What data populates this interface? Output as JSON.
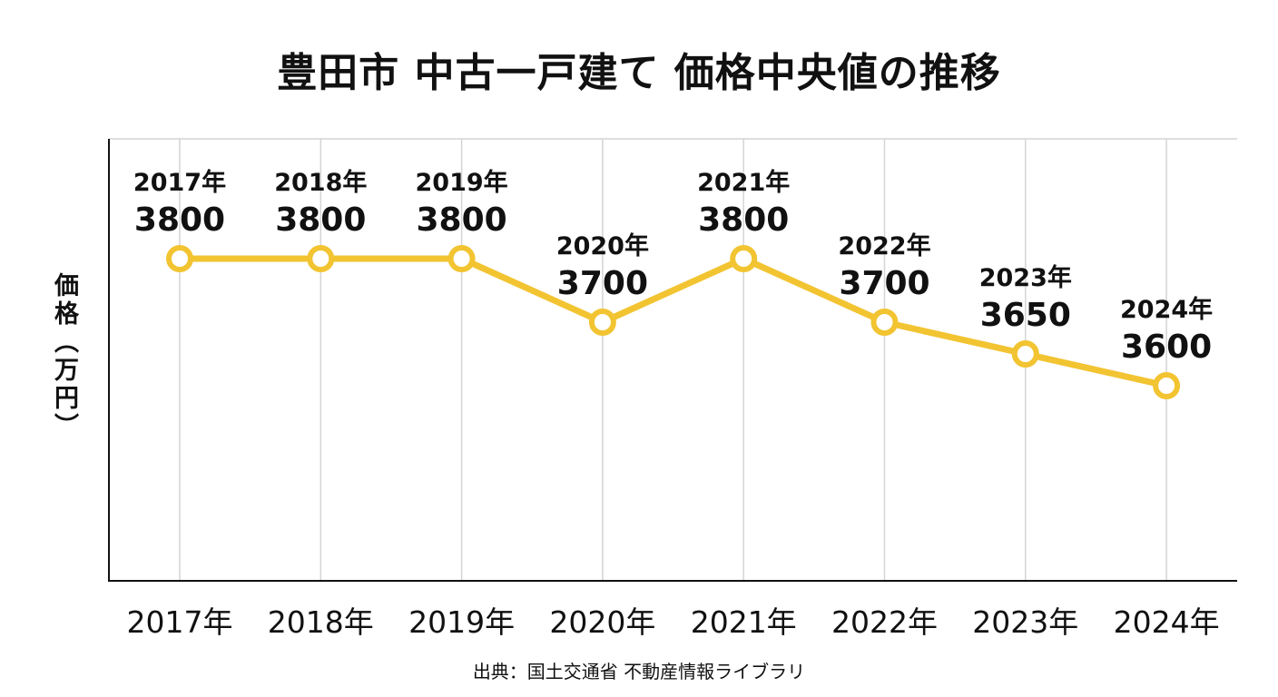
{
  "title": "豊田市 中古一戸建て 価格中央値の推移",
  "source": "出典：国土交通省 不動産情報ライブラリ",
  "colors": {
    "line": "#F2C431",
    "point_fill": "#ffffff",
    "axis": "#111111",
    "grid": "#d4d4d4"
  },
  "chart_data": {
    "type": "line",
    "title": "豊田市 中古一戸建て 価格中央値の推移",
    "xlabel": "",
    "ylabel": "価格（万円）",
    "categories": [
      "2017年",
      "2018年",
      "2019年",
      "2020年",
      "2021年",
      "2022年",
      "2023年",
      "2024年"
    ],
    "series": [
      {
        "values": [
          3800,
          3800,
          3800,
          3700,
          3800,
          3700,
          3650,
          3600
        ]
      }
    ],
    "point_labels": [
      {
        "year": "2017年",
        "value": "3800"
      },
      {
        "year": "2018年",
        "value": "3800"
      },
      {
        "year": "2019年",
        "value": "3800"
      },
      {
        "year": "2020年",
        "value": "3700"
      },
      {
        "year": "2021年",
        "value": "3800"
      },
      {
        "year": "2022年",
        "value": "3700"
      },
      {
        "year": "2023年",
        "value": "3650"
      },
      {
        "year": "2024年",
        "value": "3600"
      }
    ],
    "y_tick_labels_shown": false,
    "grid": "vertical",
    "legend": "none"
  }
}
